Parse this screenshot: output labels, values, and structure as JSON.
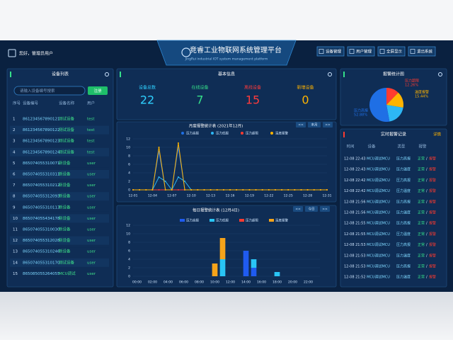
{
  "header": {
    "greeting": "您好，管理员用户",
    "title": "竞睿工业物联网系统管理平台",
    "subtitle": "JingRui industrial IOT system management platform",
    "buttons": [
      "设备管理",
      "用户管理",
      "全屏显示",
      "退出系统"
    ]
  },
  "device_list": {
    "title": "设备列表",
    "search_placeholder": "请输入设备编号搜索",
    "register": "注册",
    "columns": [
      "序号",
      "设备编号",
      "设备名称",
      "用户"
    ],
    "rows": [
      [
        "1",
        "861234567890121",
        "测试设备",
        "test"
      ],
      [
        "2",
        "861234567890122",
        "测试设备",
        "test"
      ],
      [
        "3",
        "861234567890123",
        "测试设备",
        "test"
      ],
      [
        "4",
        "861234567890124",
        "测试设备",
        "test"
      ],
      [
        "5",
        "865074055310071",
        "新设备",
        "user"
      ],
      [
        "6",
        "865074055310311",
        "新设备",
        "user"
      ],
      [
        "7",
        "865074055310212",
        "新设备",
        "user"
      ],
      [
        "8",
        "865074055312093",
        "新设备",
        "user"
      ],
      [
        "9",
        "865074055310113",
        "新设备",
        "user"
      ],
      [
        "10",
        "865074055434178",
        "新设备",
        "user"
      ],
      [
        "11",
        "865074055310030",
        "新设备",
        "user"
      ],
      [
        "12",
        "865074055312028",
        "新设备",
        "user"
      ],
      [
        "13",
        "865074055310246",
        "新设备",
        "user"
      ],
      [
        "14",
        "865074055310170",
        "测试设备",
        "user"
      ],
      [
        "15",
        "865085055264055",
        "MCU调试",
        "user"
      ]
    ]
  },
  "basic_info": {
    "title": "基本信息",
    "stats": [
      {
        "label": "设备总数",
        "value": 22,
        "color": "#2fd0ff"
      },
      {
        "label": "在线设备",
        "value": 7,
        "color": "#35e08a"
      },
      {
        "label": "离线设备",
        "value": 15,
        "color": "#ff3b3b"
      },
      {
        "label": "新增设备",
        "value": 0,
        "color": "#ffb400"
      }
    ]
  },
  "chart_data": [
    {
      "type": "line",
      "title": "月度报警统计表 (2021年12月)",
      "nav": [
        "<<",
        "本月",
        ">>"
      ],
      "categories": [
        "12-01",
        null,
        null,
        "12-04",
        null,
        null,
        "12-07",
        null,
        null,
        "12-10",
        null,
        null,
        "12-13",
        null,
        null,
        "12-16",
        null,
        null,
        "12-19",
        null,
        null,
        "12-22",
        null,
        null,
        "12-25",
        null,
        null,
        "12-28",
        null,
        null,
        "12-31"
      ],
      "series": [
        {
          "name": "压力高报",
          "color": "#1f6fe5",
          "values": [
            0,
            0,
            0,
            0,
            9,
            0,
            0,
            10,
            0,
            0,
            0,
            0,
            0,
            0,
            0,
            0,
            0,
            0,
            0,
            0,
            0,
            0,
            0,
            0,
            0,
            0,
            0,
            0,
            0,
            0,
            0
          ]
        },
        {
          "name": "压力低报",
          "color": "#2db7f5",
          "values": [
            0,
            0,
            0,
            0,
            3,
            2,
            0,
            3,
            2,
            0,
            0,
            0,
            0,
            0,
            0,
            0,
            0,
            0,
            0,
            0,
            0,
            0,
            0,
            0,
            0,
            0,
            0,
            0,
            0,
            0,
            0
          ]
        },
        {
          "name": "压力超限",
          "color": "#ff3b30",
          "values": [
            0,
            0,
            0,
            0,
            0,
            0,
            0,
            0,
            0,
            0,
            0,
            0,
            0,
            0,
            0,
            0,
            0,
            0,
            0,
            0,
            0,
            0,
            0,
            0,
            0,
            0,
            0,
            0,
            0,
            0,
            0
          ]
        },
        {
          "name": "温度报警",
          "color": "#ffb400",
          "values": [
            0,
            0,
            0,
            0,
            10,
            0,
            0,
            11,
            0,
            0,
            0,
            0,
            0,
            0,
            0,
            0,
            0,
            0,
            0,
            0,
            0,
            0,
            0,
            0,
            0,
            0,
            0,
            0,
            0,
            0,
            0
          ]
        }
      ],
      "ylim": [
        0,
        12
      ],
      "yticks": [
        0,
        2,
        4,
        6,
        8,
        10,
        12
      ],
      "grid": true
    },
    {
      "type": "stacked-bar",
      "title": "每日报警统计表 (12月4日)",
      "nav": [
        "<<",
        "今日",
        ">>"
      ],
      "categories": [
        "00:00",
        null,
        "02:00",
        null,
        "04:00",
        null,
        "06:00",
        null,
        "08:00",
        null,
        "10:00",
        null,
        "12:00",
        null,
        "14:00",
        null,
        "16:00",
        null,
        "18:00",
        null,
        "20:00",
        null,
        "22:00",
        null
      ],
      "series": [
        {
          "name": "压力高报",
          "color": "#1f5bf0",
          "values": [
            0,
            0,
            0,
            0,
            0,
            0,
            0,
            0,
            0,
            0,
            0,
            0,
            0,
            0,
            6,
            2,
            0,
            0,
            0,
            0,
            0,
            0,
            0,
            0
          ]
        },
        {
          "name": "压力低报",
          "color": "#29c5f6",
          "values": [
            0,
            0,
            0,
            0,
            0,
            0,
            0,
            0,
            0,
            0,
            0,
            4,
            0,
            0,
            0,
            2,
            0,
            0,
            1,
            0,
            0,
            0,
            0,
            0
          ]
        },
        {
          "name": "压力超限",
          "color": "#ff3b30",
          "values": [
            0,
            0,
            0,
            0,
            0,
            0,
            0,
            0,
            0,
            0,
            0,
            0,
            0,
            0,
            0,
            0,
            0,
            0,
            0,
            0,
            0,
            0,
            0,
            0
          ]
        },
        {
          "name": "温度报警",
          "color": "#f5a31a",
          "values": [
            0,
            0,
            0,
            0,
            0,
            0,
            0,
            0,
            0,
            0,
            3,
            5,
            0,
            0,
            0,
            0,
            0,
            0,
            0,
            0,
            0,
            0,
            0,
            0
          ]
        }
      ],
      "ylim": [
        0,
        12
      ],
      "yticks": [
        0,
        2,
        4,
        6,
        8,
        10,
        12
      ],
      "grid": true
    },
    {
      "type": "pie",
      "title": "报警统计图",
      "labels": [
        "压力超限",
        "温度报警",
        null,
        "压力高报"
      ],
      "values": [
        12.26,
        15.44,
        19.42,
        52.88
      ],
      "value_labels": [
        "12.26%",
        "15.44%",
        null,
        "52.88%"
      ],
      "colors": [
        "#ff3b30",
        "#ffb400",
        "#2db7f5",
        "#1f6fe5"
      ]
    }
  ],
  "alarm_log": {
    "title": "实时报警记录",
    "details": "详情",
    "columns": [
      "时间",
      "设备",
      "类型",
      "报警"
    ],
    "rows": [
      [
        "12-08 22:43",
        "MCU调试MCU",
        "压力高报",
        "正常",
        "/",
        "报警"
      ],
      [
        "12-08 22:43",
        "MCU调试MCU",
        "压力温度",
        "正常",
        "/",
        "报警"
      ],
      [
        "12-08 22:42",
        "MCU调试MCU",
        "压力高报",
        "正常",
        "/",
        "报警"
      ],
      [
        "12-08 22:42",
        "MCU调试MCU",
        "压力温度",
        "正常",
        "/",
        "报警"
      ],
      [
        "12-08 21:56",
        "MCU调试MCU",
        "压力高报",
        "正常",
        "/",
        "报警"
      ],
      [
        "12-08 21:56",
        "MCU调试MCU",
        "压力温度",
        "正常",
        "/",
        "报警"
      ],
      [
        "12-08 21:55",
        "MCU调试MCU",
        "压力高报",
        "正常",
        "/",
        "报警"
      ],
      [
        "12-08 21:55",
        "MCU调试MCU",
        "压力温度",
        "正常",
        "/",
        "报警"
      ],
      [
        "12-08 21:53",
        "MCU调试MCU",
        "压力高报",
        "正常",
        "/",
        "报警"
      ],
      [
        "12-08 21:53",
        "MCU调试MCU",
        "压力温度",
        "正常",
        "/",
        "报警"
      ],
      [
        "12-08 21:53",
        "MCU调试MCU",
        "压力高报",
        "正常",
        "/",
        "报警"
      ],
      [
        "12-08 21:52",
        "MCU调试MCU",
        "压力温度",
        "正常",
        "/",
        "报警"
      ]
    ]
  }
}
